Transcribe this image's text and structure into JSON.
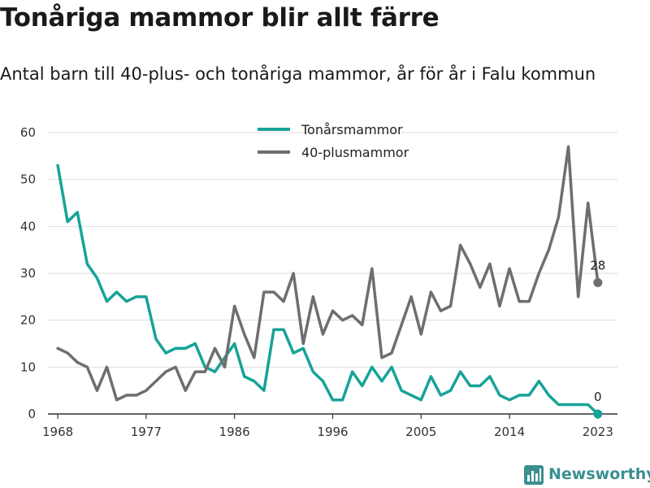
{
  "header": {
    "title": "Tonåriga mammor blir allt färre",
    "subtitle": "Antal barn till 40-plus- och tonåriga mammor, år för år i Falu kommun"
  },
  "brand": {
    "name": "Newsworthy",
    "color": "#3c8f8f"
  },
  "chart_data": {
    "type": "line",
    "x": [
      1968,
      1969,
      1970,
      1971,
      1972,
      1973,
      1974,
      1975,
      1976,
      1977,
      1978,
      1979,
      1980,
      1981,
      1982,
      1983,
      1984,
      1985,
      1986,
      1987,
      1988,
      1989,
      1990,
      1991,
      1992,
      1993,
      1994,
      1995,
      1996,
      1997,
      1998,
      1999,
      2000,
      2001,
      2002,
      2003,
      2004,
      2005,
      2006,
      2007,
      2008,
      2009,
      2010,
      2011,
      2012,
      2013,
      2014,
      2015,
      2016,
      2017,
      2018,
      2019,
      2020,
      2021,
      2022,
      2023
    ],
    "series": [
      {
        "name": "Tonårsmammor",
        "color": "#17a398",
        "values": [
          53,
          41,
          43,
          32,
          29,
          24,
          26,
          24,
          25,
          25,
          16,
          13,
          14,
          14,
          15,
          10,
          9,
          12,
          15,
          8,
          7,
          5,
          18,
          18,
          13,
          14,
          9,
          7,
          3,
          3,
          9,
          6,
          10,
          7,
          10,
          5,
          4,
          3,
          8,
          4,
          5,
          9,
          6,
          6,
          8,
          4,
          3,
          4,
          4,
          7,
          4,
          2,
          2,
          2,
          2,
          0
        ]
      },
      {
        "name": "40-plusmammor",
        "color": "#6e6e6e",
        "values": [
          14,
          13,
          11,
          10,
          5,
          10,
          3,
          4,
          4,
          5,
          7,
          9,
          10,
          5,
          9,
          9,
          14,
          10,
          23,
          17,
          12,
          26,
          26,
          24,
          30,
          15,
          25,
          17,
          22,
          20,
          21,
          19,
          31,
          12,
          13,
          19,
          25,
          17,
          26,
          22,
          23,
          36,
          32,
          27,
          32,
          23,
          31,
          24,
          24,
          30,
          35,
          42,
          57,
          25,
          45,
          28
        ]
      }
    ],
    "end_labels": [
      "0",
      "28"
    ],
    "xticks": [
      "1968",
      "1977",
      "1986",
      "1996",
      "2005",
      "2014",
      "2023"
    ],
    "yticks": [
      "0",
      "10",
      "20",
      "30",
      "40",
      "50",
      "60"
    ],
    "xlim": [
      1967,
      2025
    ],
    "ylim": [
      0,
      60
    ],
    "grid": true,
    "legend_position": "top-center"
  }
}
